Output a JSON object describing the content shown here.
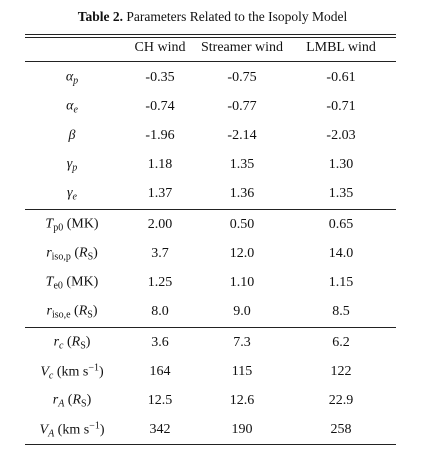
{
  "title": {
    "label": "Table 2.",
    "text": "Parameters Related to the Isopoly Model"
  },
  "table": {
    "header": [
      "CH wind",
      "Streamer wind",
      "LMBL wind"
    ],
    "groups": [
      [
        {
          "label": [
            {
              "text": "α",
              "italic": true
            },
            {
              "text": "p",
              "italic": true,
              "sub": true
            }
          ],
          "cells": [
            "-0.35",
            "-0.75",
            "-0.61"
          ]
        },
        {
          "label": [
            {
              "text": "α",
              "italic": true
            },
            {
              "text": "e",
              "italic": true,
              "sub": true
            }
          ],
          "cells": [
            "-0.74",
            "-0.77",
            "-0.71"
          ]
        },
        {
          "label": [
            {
              "text": "β",
              "italic": true
            }
          ],
          "cells": [
            "-1.96",
            "-2.14",
            "-2.03"
          ]
        },
        {
          "label": [
            {
              "text": "γ",
              "italic": true
            },
            {
              "text": "p",
              "italic": true,
              "sub": true
            }
          ],
          "cells": [
            "1.18",
            "1.35",
            "1.30"
          ]
        },
        {
          "label": [
            {
              "text": "γ",
              "italic": true
            },
            {
              "text": "e",
              "italic": true,
              "sub": true
            }
          ],
          "cells": [
            "1.37",
            "1.36",
            "1.35"
          ]
        }
      ],
      [
        {
          "label": [
            {
              "text": "T",
              "italic": true
            },
            {
              "text": "p0",
              "sub": true
            },
            {
              "text": " (MK)"
            }
          ],
          "cells": [
            "2.00",
            "0.50",
            "0.65"
          ]
        },
        {
          "label": [
            {
              "text": "r",
              "italic": true
            },
            {
              "text": "iso,p",
              "sub": true
            },
            {
              "text": " ("
            },
            {
              "text": "R",
              "italic": true
            },
            {
              "text": "S",
              "sub": true
            },
            {
              "text": ")"
            }
          ],
          "cells": [
            "3.7",
            "12.0",
            "14.0"
          ]
        },
        {
          "label": [
            {
              "text": "T",
              "italic": true
            },
            {
              "text": "e0",
              "sub": true
            },
            {
              "text": " (MK)"
            }
          ],
          "cells": [
            "1.25",
            "1.10",
            "1.15"
          ]
        },
        {
          "label": [
            {
              "text": "r",
              "italic": true
            },
            {
              "text": "iso,e",
              "sub": true
            },
            {
              "text": " ("
            },
            {
              "text": "R",
              "italic": true
            },
            {
              "text": "S",
              "sub": true
            },
            {
              "text": ")"
            }
          ],
          "cells": [
            "8.0",
            "9.0",
            "8.5"
          ]
        }
      ],
      [
        {
          "label": [
            {
              "text": "r",
              "italic": true
            },
            {
              "text": "c",
              "italic": true,
              "sub": true
            },
            {
              "text": " ("
            },
            {
              "text": "R",
              "italic": true
            },
            {
              "text": "S",
              "sub": true
            },
            {
              "text": ")"
            }
          ],
          "cells": [
            "3.6",
            "7.3",
            "6.2"
          ]
        },
        {
          "label": [
            {
              "text": "V",
              "italic": true
            },
            {
              "text": "c",
              "italic": true,
              "sub": true
            },
            {
              "text": " (km s"
            },
            {
              "text": "−1",
              "sup": true
            },
            {
              "text": ")"
            }
          ],
          "cells": [
            "164",
            "115",
            "122"
          ]
        },
        {
          "label": [
            {
              "text": "r",
              "italic": true
            },
            {
              "text": "A",
              "italic": true,
              "sub": true
            },
            {
              "text": " ("
            },
            {
              "text": "R",
              "italic": true
            },
            {
              "text": "S",
              "sub": true
            },
            {
              "text": ")"
            }
          ],
          "cells": [
            "12.5",
            "12.6",
            "22.9"
          ]
        },
        {
          "label": [
            {
              "text": "V",
              "italic": true
            },
            {
              "text": "A",
              "italic": true,
              "sub": true
            },
            {
              "text": " (km s"
            },
            {
              "text": "−1",
              "sup": true
            },
            {
              "text": ")"
            }
          ],
          "cells": [
            "342",
            "190",
            "258"
          ]
        }
      ]
    ]
  }
}
